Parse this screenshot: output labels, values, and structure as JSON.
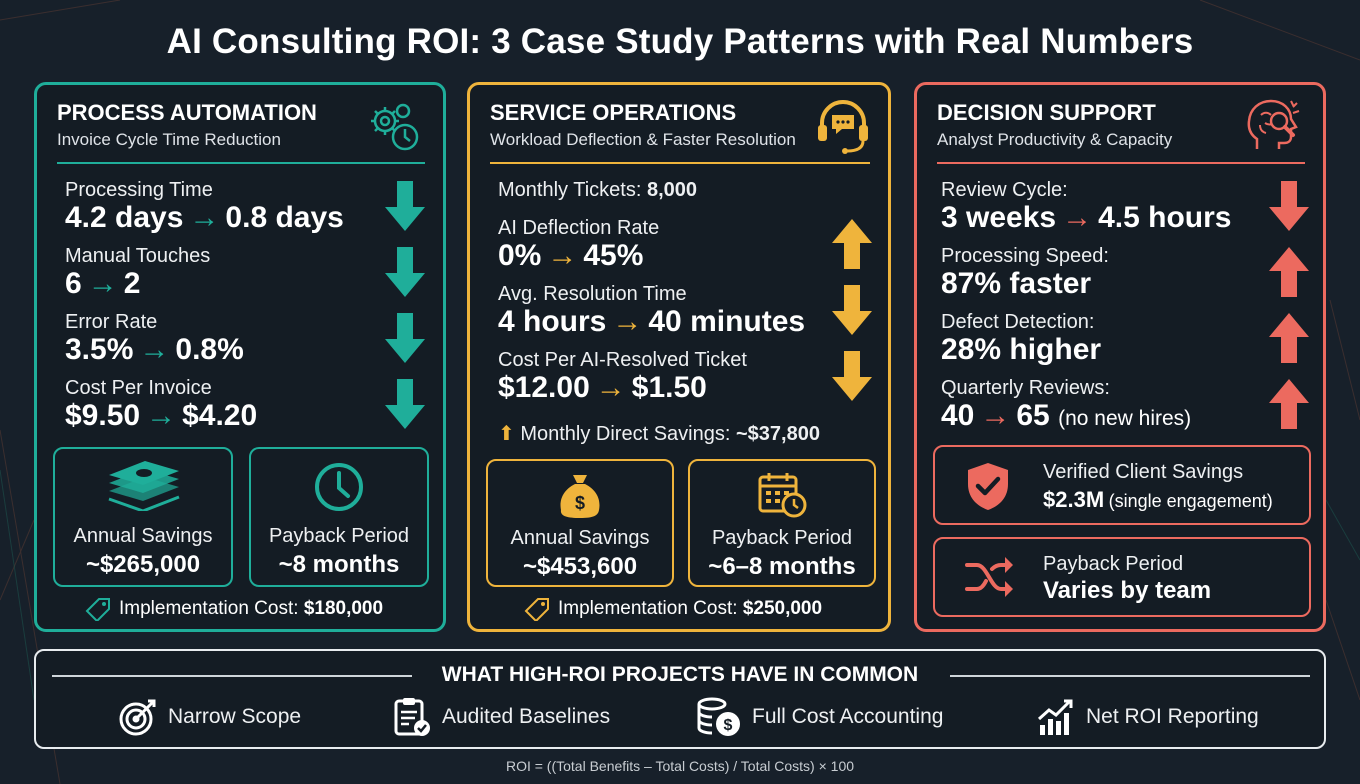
{
  "title": "AI Consulting ROI: 3 Case Study Patterns with Real Numbers",
  "colors": {
    "teal": "#1fae9a",
    "gold": "#efb43c",
    "coral": "#ec6a5f",
    "background": "#17202a"
  },
  "process_automation": {
    "title": "PROCESS AUTOMATION",
    "subtitle": "Invoice Cycle Time Reduction",
    "icon": "gears-clock-icon",
    "metrics": [
      {
        "label": "Processing Time",
        "from": "4.2 days",
        "to": "0.8 days",
        "trend": "down"
      },
      {
        "label": "Manual Touches",
        "from": "6",
        "to": "2",
        "trend": "down"
      },
      {
        "label": "Error Rate",
        "from": "3.5%",
        "to": "0.8%",
        "trend": "down"
      },
      {
        "label": "Cost Per Invoice",
        "from": "$9.50",
        "to": "$4.20",
        "trend": "down"
      }
    ],
    "annual_savings": {
      "label": "Annual Savings",
      "value": "~$265,000",
      "icon": "money-stack-icon"
    },
    "payback": {
      "label": "Payback Period",
      "value": "~8 months",
      "icon": "clock-icon"
    },
    "implementation": {
      "label": "Implementation Cost:",
      "value": "$180,000"
    }
  },
  "service_operations": {
    "title": "SERVICE OPERATIONS",
    "subtitle": "Workload Deflection & Faster Resolution",
    "icon": "headset-chat-icon",
    "monthly_tickets": {
      "label": "Monthly Tickets:",
      "value": "8,000"
    },
    "metrics": [
      {
        "label": "AI Deflection Rate",
        "from": "0%",
        "to": "45%",
        "trend": "up"
      },
      {
        "label": "Avg. Resolution Time",
        "from": "4 hours",
        "to": "40 minutes",
        "trend": "down"
      },
      {
        "label": "Cost Per AI-Resolved Ticket",
        "from": "$12.00",
        "to": "$1.50",
        "trend": "down"
      }
    ],
    "monthly_savings": {
      "label": "Monthly Direct Savings:",
      "value": "~$37,800"
    },
    "annual_savings": {
      "label": "Annual Savings",
      "value": "~$453,600",
      "icon": "money-bag-icon"
    },
    "payback": {
      "label": "Payback Period",
      "value": "~6–8 months",
      "icon": "calendar-clock-icon"
    },
    "implementation": {
      "label": "Implementation Cost:",
      "value": "$250,000"
    }
  },
  "decision_support": {
    "title": "DECISION SUPPORT",
    "subtitle": "Analyst Productivity & Capacity",
    "icon": "brain-magnifier-icon",
    "metrics": [
      {
        "label": "Review Cycle:",
        "from": "3 weeks",
        "to": "4.5 hours",
        "trend": "down"
      },
      {
        "label": "Processing Speed:",
        "value": "87% faster",
        "trend": "up"
      },
      {
        "label": "Defect Detection:",
        "value": "28% higher",
        "trend": "up"
      },
      {
        "label": "Quarterly Reviews:",
        "from": "40",
        "to": "65",
        "note": "(no new hires)",
        "trend": "up"
      }
    ],
    "verified": {
      "label": "Verified Client Savings",
      "value": "$2.3M",
      "note": "(single engagement)",
      "icon": "shield-check-icon"
    },
    "payback": {
      "label": "Payback Period",
      "value": "Varies by team",
      "icon": "shuffle-icon"
    }
  },
  "common": {
    "title": "WHAT HIGH-ROI PROJECTS HAVE IN COMMON",
    "items": [
      {
        "label": "Narrow Scope",
        "icon": "target-icon"
      },
      {
        "label": "Audited Baselines",
        "icon": "clipboard-check-icon"
      },
      {
        "label": "Full Cost Accounting",
        "icon": "coins-dollar-icon"
      },
      {
        "label": "Net ROI Reporting",
        "icon": "bar-chart-up-icon"
      }
    ]
  },
  "formula": "ROI = ((Total Benefits – Total Costs) / Total Costs) × 100"
}
